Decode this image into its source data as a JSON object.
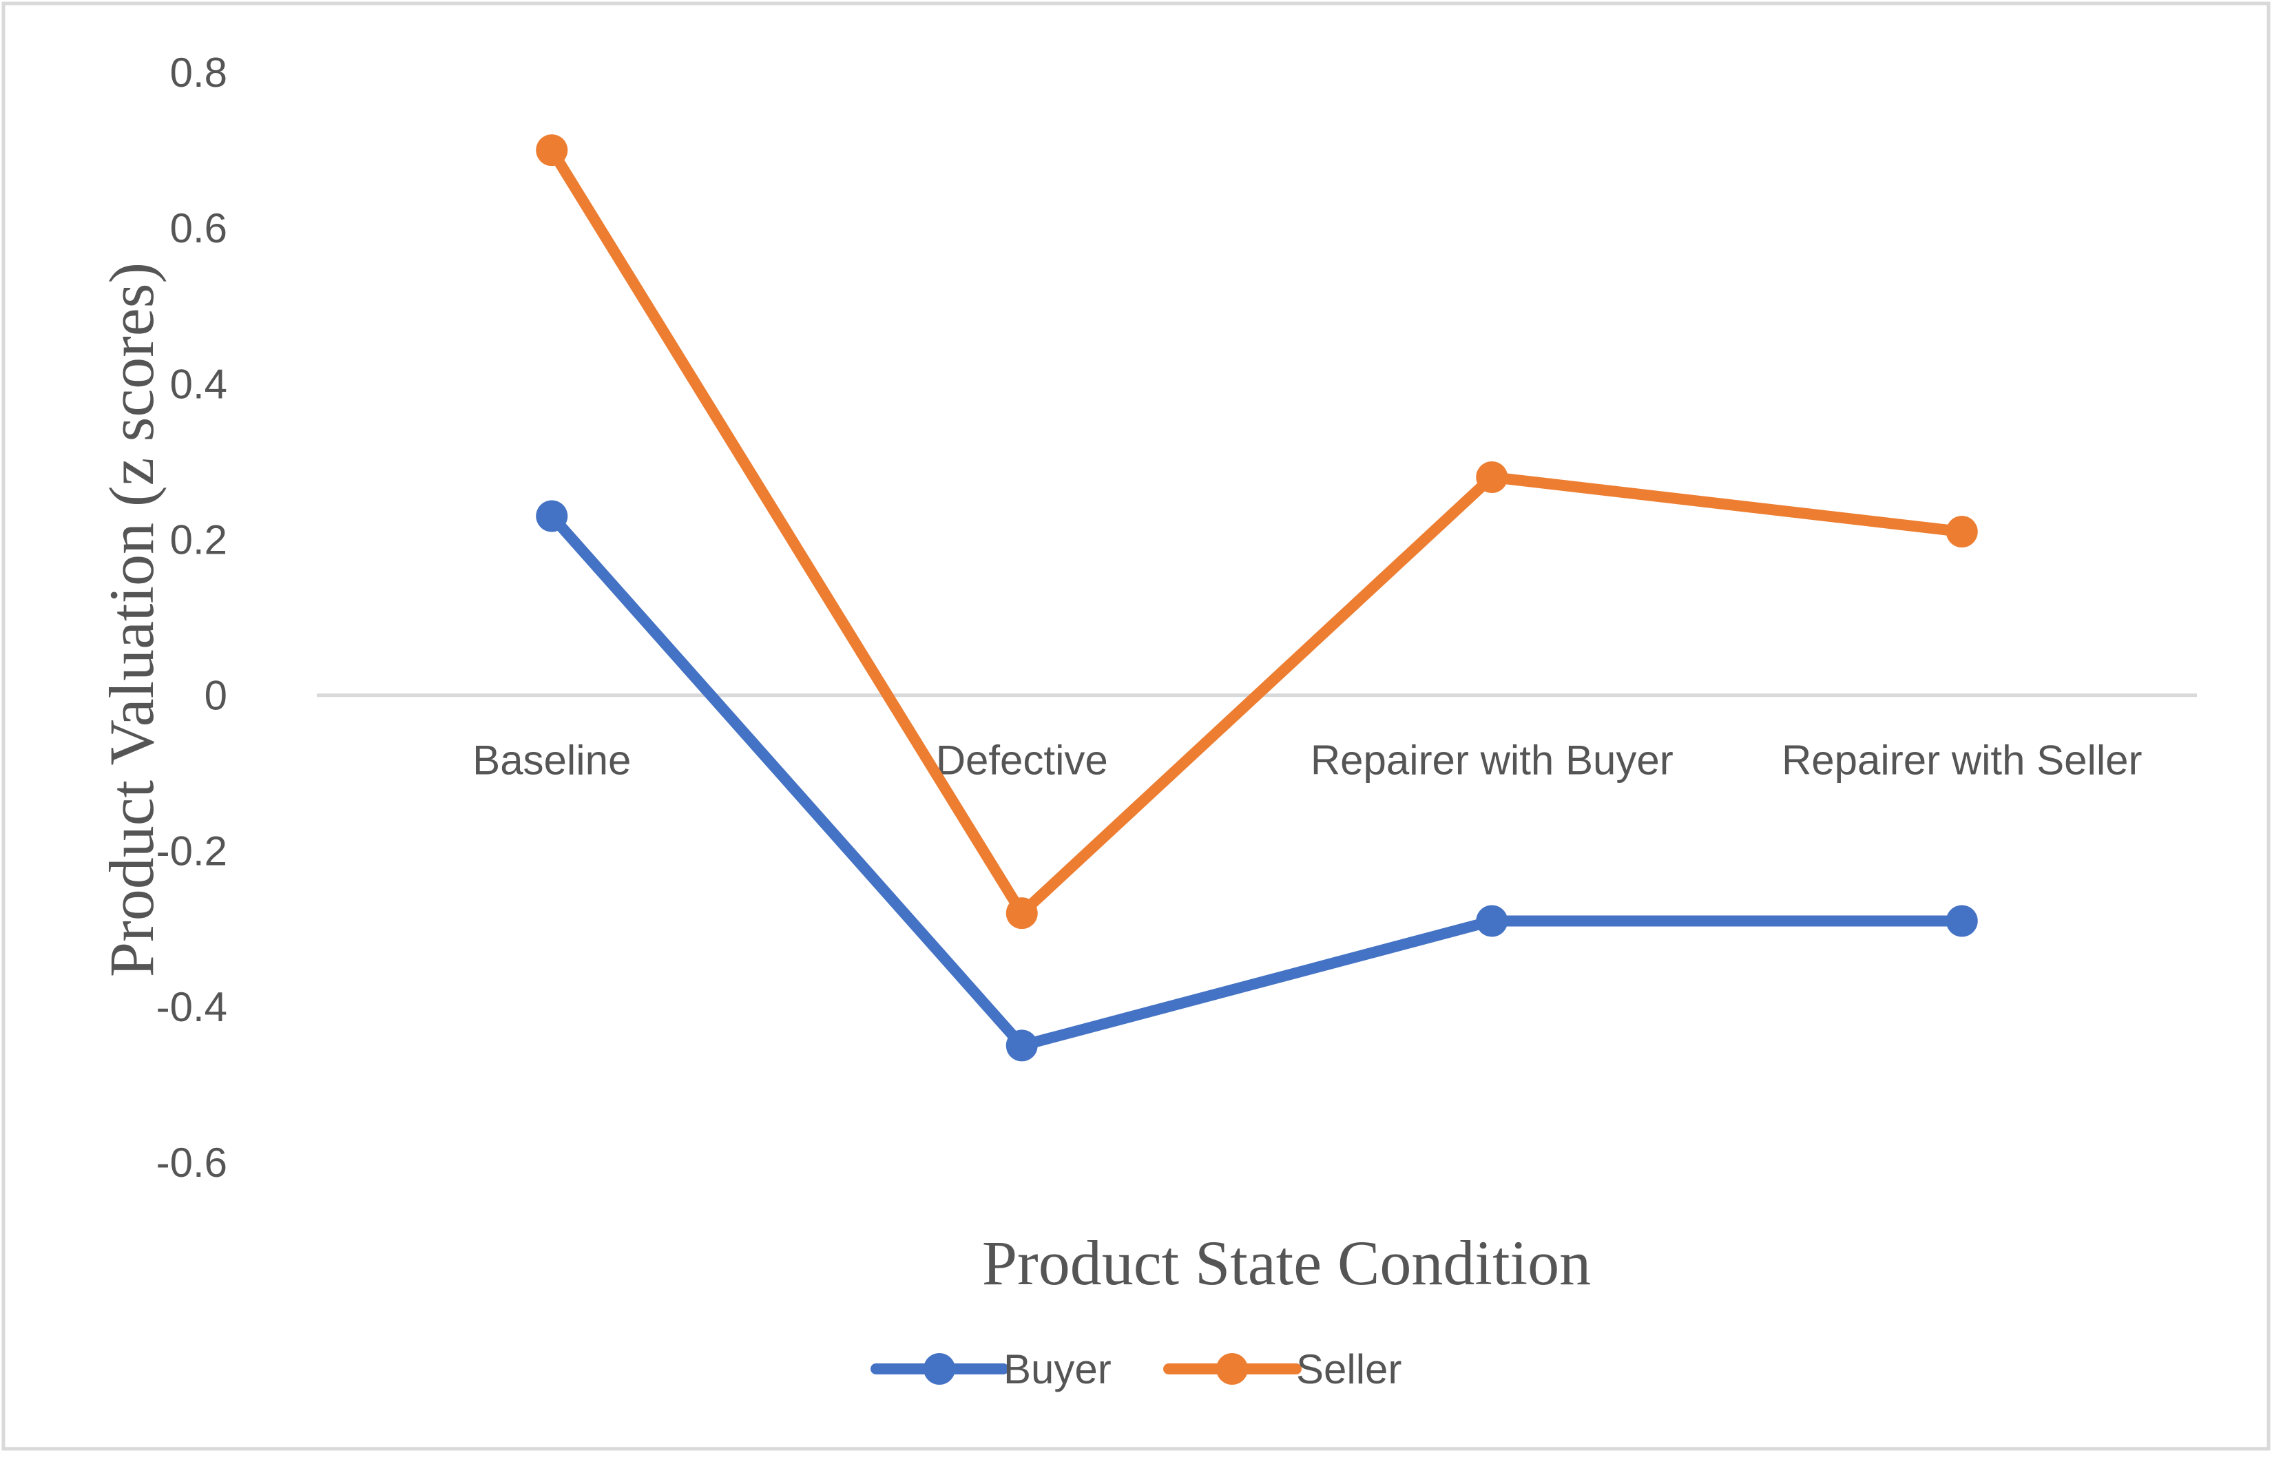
{
  "chart_data": {
    "type": "line",
    "title": "",
    "xlabel": "Product State Condition",
    "ylabel": "Product Valuation (z scores)",
    "categories": [
      "Baseline",
      "Defective",
      "Repairer with Buyer",
      "Repairer with Seller"
    ],
    "ylim": [
      -0.6,
      0.8
    ],
    "yticks": [
      0.8,
      0.6,
      0.4,
      0.2,
      0,
      -0.2,
      -0.4,
      -0.6
    ],
    "ytick_labels": [
      "0.8",
      "0.6",
      "0.4",
      "0.2",
      "0",
      "-0.2",
      "-0.4",
      "-0.6"
    ],
    "grid": false,
    "legend_position": "bottom",
    "series": [
      {
        "name": "Buyer",
        "color": "#4472C4",
        "values": [
          0.23,
          -0.45,
          -0.29,
          -0.29
        ]
      },
      {
        "name": "Seller",
        "color": "#ED7D31",
        "values": [
          0.7,
          -0.28,
          0.28,
          0.21
        ]
      }
    ],
    "zero_line_color": "#D9D9D9",
    "border_color": "#D9D9D9"
  }
}
